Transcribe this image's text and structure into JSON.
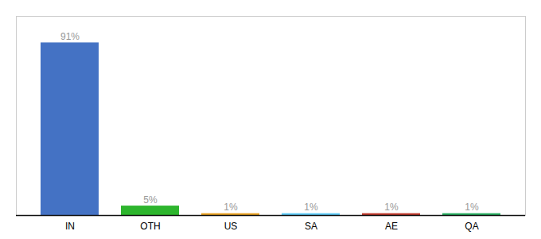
{
  "chart_data": {
    "type": "bar",
    "categories": [
      "IN",
      "OTH",
      "US",
      "SA",
      "AE",
      "QA"
    ],
    "values": [
      91,
      5,
      1,
      1,
      1,
      1
    ],
    "value_labels": [
      "91%",
      "5%",
      "1%",
      "1%",
      "1%",
      "1%"
    ],
    "colors": [
      "#4472c4",
      "#2db52d",
      "#e8a020",
      "#5bc8f5",
      "#c0392b",
      "#27ae60"
    ],
    "ylim": [
      0,
      105
    ],
    "tick_labels": "x",
    "data_labels": true
  }
}
